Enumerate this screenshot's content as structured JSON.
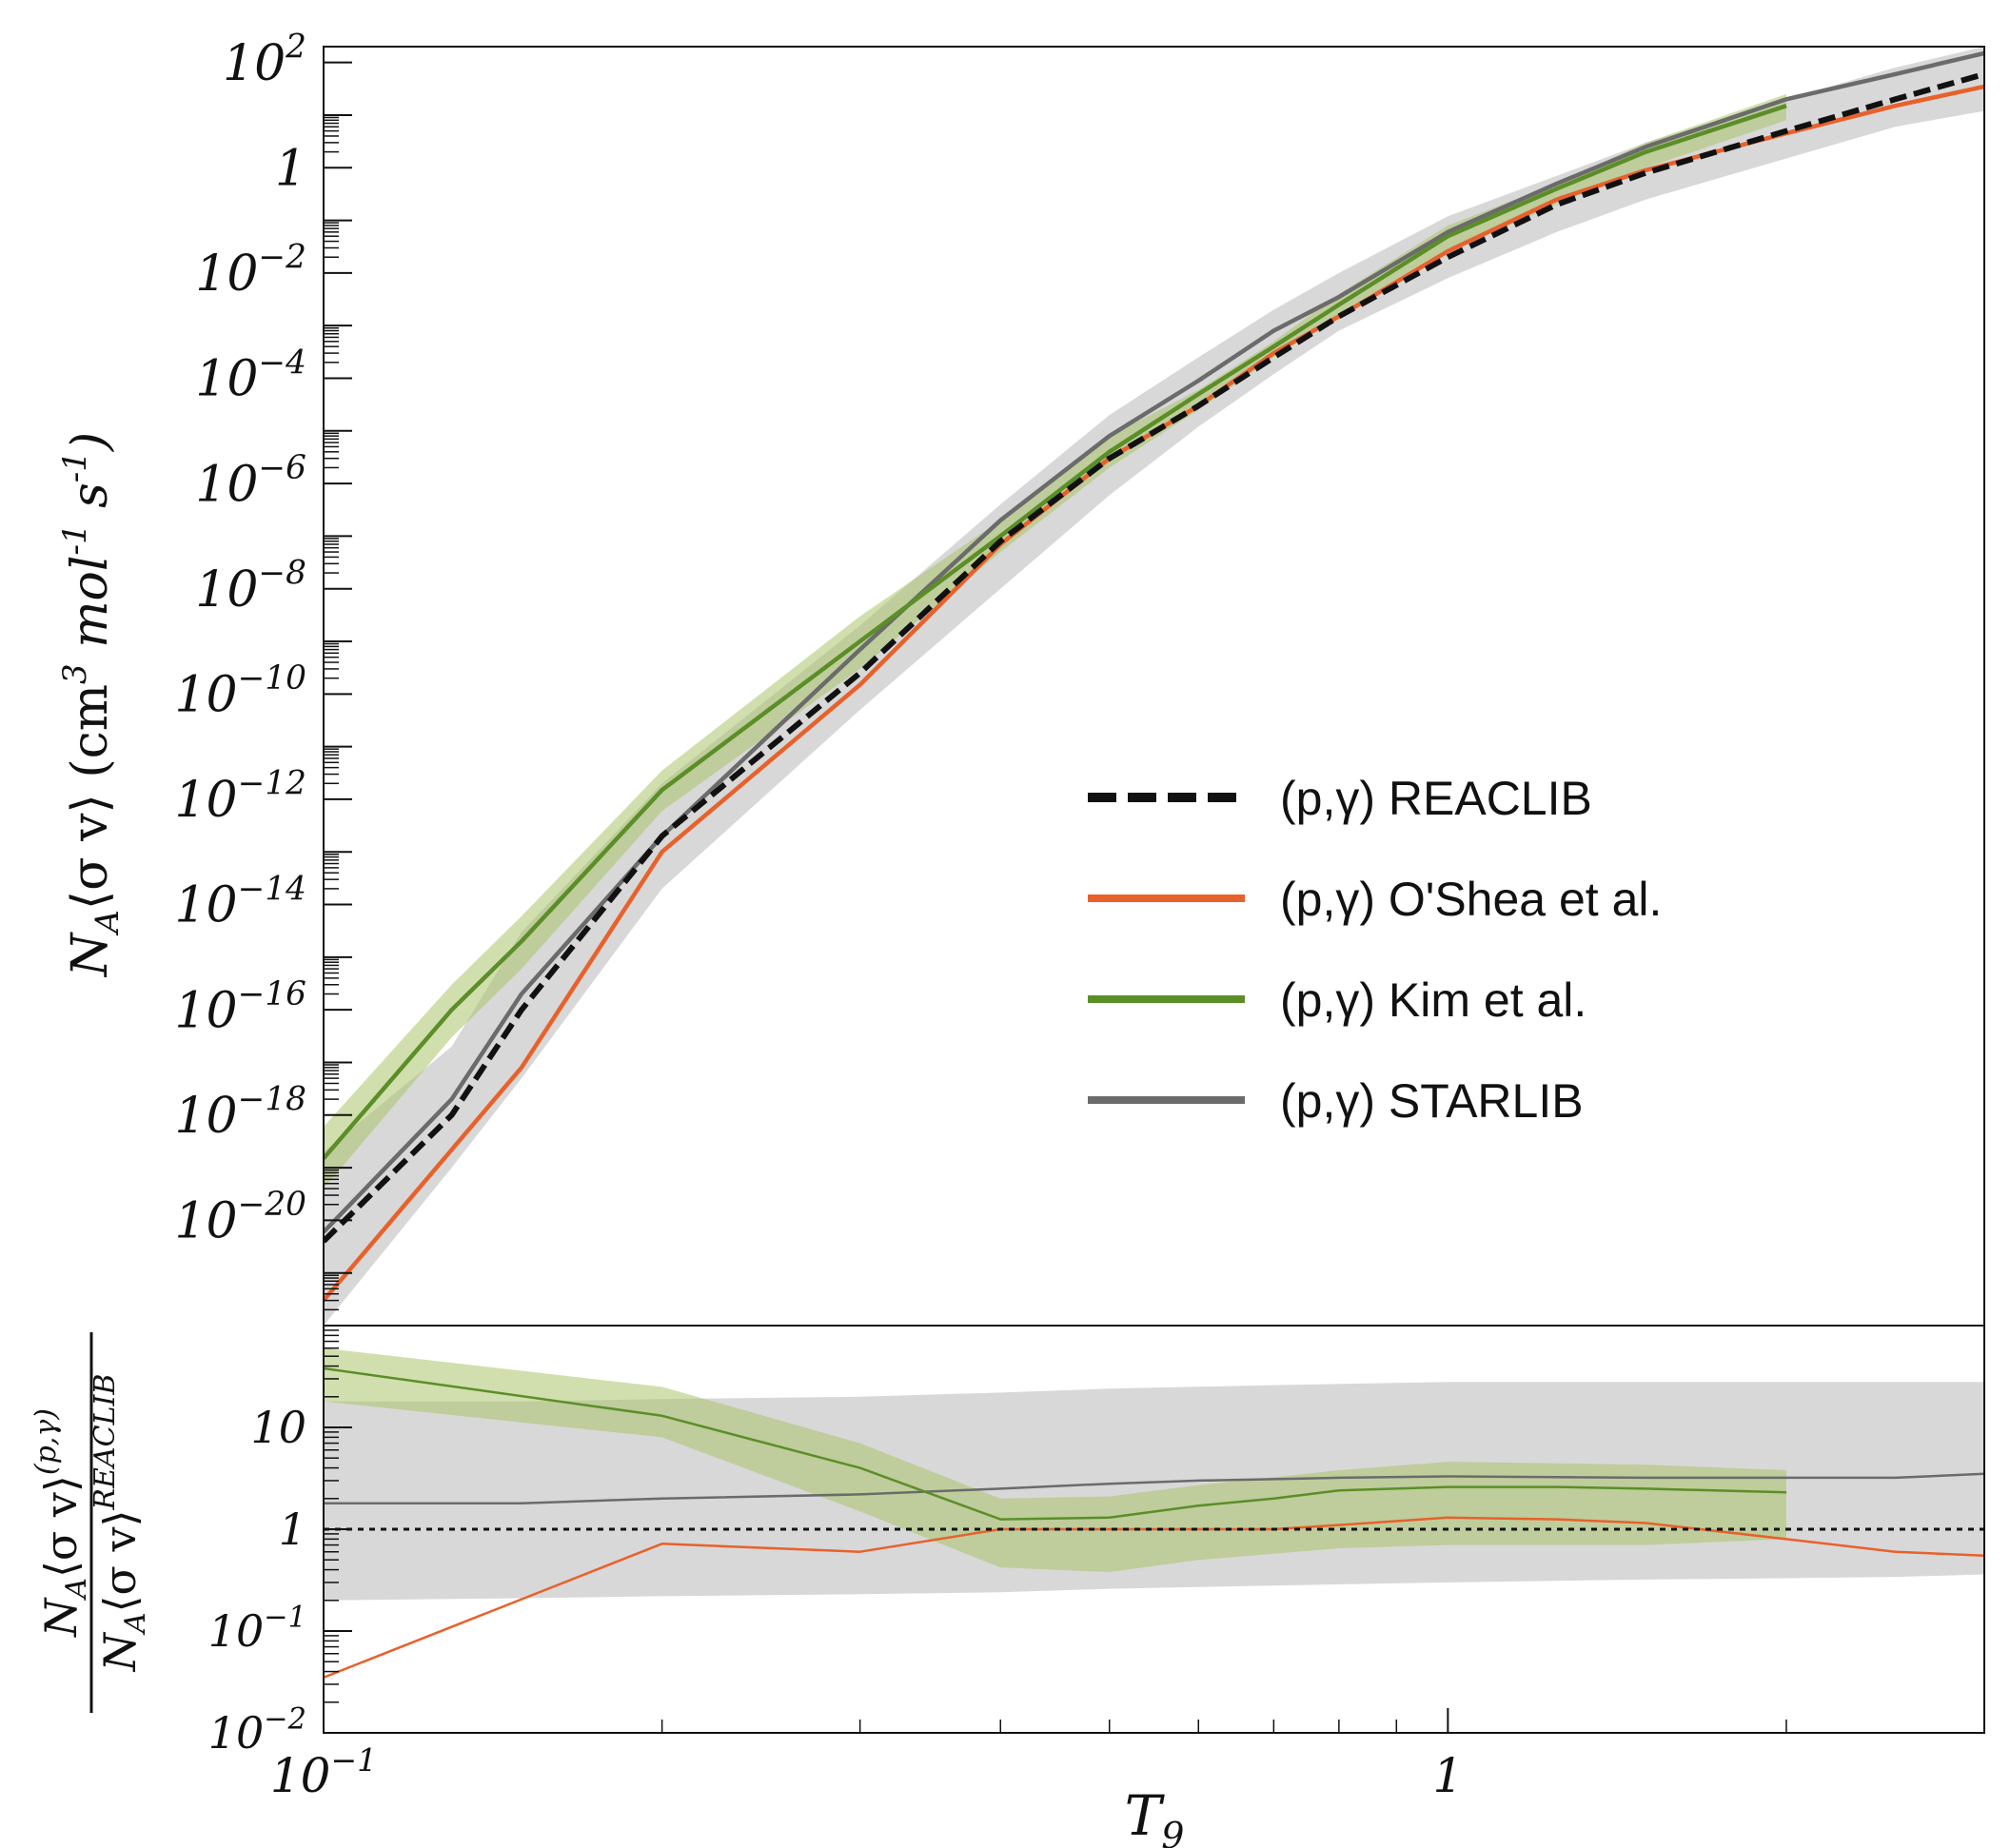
{
  "figure": {
    "xlabel": "T",
    "xlabel_sub": "9",
    "top_ylabel": {
      "pre": "N",
      "sub": "A",
      "mid": "⟨σ v⟩ (cm",
      "sup3": "3",
      "mid2": " mol",
      "supm1a": "-1",
      "mid3": " s",
      "supm1b": "-1",
      "end": ")"
    },
    "bottom_ylabel": {
      "num": "N",
      "num_sub": "A",
      "num_mid": "⟨σ v⟩",
      "num_sup": "(p,γ)",
      "den": "N",
      "den_sub": "A",
      "den_mid": "⟨σ v⟩",
      "den_sup": "REACLIB"
    }
  },
  "colors": {
    "reaclib": "#111111",
    "oshea": "#e8612b",
    "kim": "#5c8e28",
    "kim_band": "#a9c46a",
    "starlib": "#6b6b6b",
    "starlib_band": "#d4d4d4"
  },
  "chart_data": [
    {
      "type": "line",
      "panel": "top",
      "xscale": "log",
      "yscale": "log",
      "xlim": [
        0.1,
        3.0
      ],
      "ylim": [
        1e-22,
        200
      ],
      "ylabel": "N_A⟨σ v⟩ (cm^3 mol^-1 s^-1)",
      "yticks": [
        {
          "base": "10",
          "exp": "2",
          "v": 100
        },
        {
          "base": "1",
          "exp": "",
          "v": 1
        },
        {
          "base": "10",
          "exp": "−2",
          "v": 0.01
        },
        {
          "base": "10",
          "exp": "−4",
          "v": 0.0001
        },
        {
          "base": "10",
          "exp": "−6",
          "v": 1e-06
        },
        {
          "base": "10",
          "exp": "−8",
          "v": 1e-08
        },
        {
          "base": "10",
          "exp": "−10",
          "v": 1e-10
        },
        {
          "base": "10",
          "exp": "−12",
          "v": 1e-12
        },
        {
          "base": "10",
          "exp": "−14",
          "v": 1e-14
        },
        {
          "base": "10",
          "exp": "−16",
          "v": 1e-16
        },
        {
          "base": "10",
          "exp": "−18",
          "v": 1e-18
        },
        {
          "base": "10",
          "exp": "−20",
          "v": 1e-20
        }
      ],
      "legend_position": "center-right",
      "series": [
        {
          "key": "starlib_band",
          "type": "area",
          "name": "STARLIB uncertainty",
          "x": [
            0.1,
            0.13,
            0.15,
            0.2,
            0.3,
            0.4,
            0.5,
            0.6,
            0.7,
            0.8,
            1.0,
            1.25,
            1.5,
            2.0,
            2.5,
            3.0
          ],
          "lower": [
            1e-22,
            1e-19,
            5e-18,
            2e-14,
            5e-11,
            1e-08,
            6e-07,
            1.2e-05,
            0.00012,
            0.0008,
            0.008,
            0.06,
            0.25,
            1.5,
            6,
            12
          ],
          "upper": [
            2e-19,
            2e-17,
            3e-15,
            2e-12,
            2e-09,
            4e-07,
            2e-05,
            0.00025,
            0.002,
            0.01,
            0.12,
            0.7,
            3,
            20,
            80,
            200
          ]
        },
        {
          "key": "kim_band",
          "type": "area",
          "name": "Kim et al. uncertainty",
          "x": [
            0.1,
            0.13,
            0.15,
            0.2,
            0.3,
            0.4,
            0.5,
            0.6,
            0.7,
            0.8,
            1.0,
            1.25,
            1.5,
            2.0
          ],
          "lower": [
            4e-20,
            3e-17,
            6e-16,
            6e-13,
            3e-10,
            5e-08,
            2e-06,
            2.5e-05,
            0.00025,
            0.0015,
            0.025,
            0.2,
            1.0,
            8
          ],
          "upper": [
            6e-19,
            3e-16,
            6e-15,
            3.5e-12,
            3e-09,
            2e-07,
            8e-06,
            6e-05,
            0.0005,
            0.004,
            0.08,
            0.5,
            3,
            25
          ]
        },
        {
          "key": "reaclib",
          "type": "line",
          "name": "(p,γ) REACLIB",
          "dash": "dashed",
          "x": [
            0.1,
            0.13,
            0.15,
            0.2,
            0.3,
            0.4,
            0.5,
            0.6,
            0.7,
            0.8,
            1.0,
            1.25,
            1.5,
            2.0,
            2.5,
            3.0
          ],
          "y": [
            4e-21,
            1e-18,
            1e-16,
            2e-13,
            2.5e-10,
            8e-08,
            3e-06,
            3e-05,
            0.00025,
            0.0015,
            0.02,
            0.2,
            0.8,
            5,
            20,
            60
          ]
        },
        {
          "key": "oshea",
          "type": "line",
          "name": "(p,γ) O'Shea et al.",
          "x": [
            0.1,
            0.15,
            0.2,
            0.3,
            0.4,
            0.5,
            0.6,
            0.7,
            0.8,
            1.0,
            1.25,
            1.5,
            2.0,
            2.5,
            3.0
          ],
          "y": [
            3e-22,
            8e-18,
            1e-13,
            1.5e-10,
            7e-08,
            3e-06,
            3e-05,
            0.0003,
            0.0015,
            0.026,
            0.25,
            0.9,
            4.5,
            15,
            35
          ]
        },
        {
          "key": "kim",
          "type": "line",
          "name": "(p,γ) Kim et al.",
          "x": [
            0.1,
            0.13,
            0.15,
            0.2,
            0.3,
            0.4,
            0.5,
            0.6,
            0.7,
            0.8,
            1.0,
            1.25,
            1.5,
            2.0
          ],
          "y": [
            1.5e-19,
            1e-16,
            2e-15,
            1.5e-12,
            1e-09,
            1e-07,
            4e-06,
            5e-05,
            0.0004,
            0.0025,
            0.05,
            0.4,
            2,
            15
          ]
        },
        {
          "key": "starlib",
          "type": "line",
          "name": "(p,γ) STARLIB",
          "x": [
            0.1,
            0.13,
            0.15,
            0.2,
            0.3,
            0.4,
            0.5,
            0.6,
            0.7,
            0.8,
            1.0,
            1.25,
            1.5,
            2.0,
            2.5,
            3.0
          ],
          "y": [
            6e-21,
            2e-18,
            2e-16,
            2e-13,
            7e-10,
            2e-07,
            8e-06,
            9e-05,
            0.0008,
            0.0035,
            0.06,
            0.5,
            2.5,
            20,
            60,
            150
          ]
        }
      ]
    },
    {
      "type": "line",
      "panel": "bottom",
      "xscale": "log",
      "yscale": "log",
      "xlim": [
        0.1,
        3.0
      ],
      "ylim": [
        0.01,
        100
      ],
      "ylabel": "N_A⟨σ v⟩^(p,γ) / N_A⟨σ v⟩^REACLIB",
      "yticks": [
        {
          "base": "10",
          "exp": "",
          "v": 10
        },
        {
          "base": "1",
          "exp": "",
          "v": 1
        },
        {
          "base": "10",
          "exp": "−1",
          "v": 0.1
        },
        {
          "base": "10",
          "exp": "−2",
          "v": 0.01
        }
      ],
      "xticks": [
        {
          "base": "10",
          "exp": "−1",
          "v": 0.1
        },
        {
          "base": "1",
          "exp": "",
          "v": 1
        }
      ],
      "series": [
        {
          "key": "starlib_band",
          "type": "area",
          "name": "STARLIB ratio uncertainty",
          "x": [
            0.1,
            0.15,
            0.2,
            0.3,
            0.4,
            0.5,
            0.7,
            1.0,
            1.5,
            2.0,
            2.5,
            3.0
          ],
          "lower": [
            0.2,
            0.21,
            0.22,
            0.23,
            0.24,
            0.26,
            0.28,
            0.3,
            0.32,
            0.33,
            0.34,
            0.36
          ],
          "upper": [
            18,
            18,
            19,
            20,
            22,
            24,
            26,
            28,
            28,
            28,
            28,
            28
          ]
        },
        {
          "key": "kim_band",
          "type": "area",
          "name": "Kim et al. ratio uncertainty",
          "x": [
            0.1,
            0.2,
            0.3,
            0.4,
            0.5,
            0.6,
            0.8,
            1.0,
            1.5,
            2.0
          ],
          "lower": [
            18,
            8,
            1.5,
            0.42,
            0.38,
            0.5,
            0.65,
            0.7,
            0.7,
            0.8
          ],
          "upper": [
            60,
            25,
            7,
            2.0,
            2.1,
            2.7,
            3.8,
            4.6,
            4.3,
            3.8
          ]
        },
        {
          "key": "reaclib",
          "type": "line",
          "name": "REACLIB ratio",
          "dash": "dotted",
          "x": [
            0.1,
            3.0
          ],
          "y": [
            1,
            1
          ]
        },
        {
          "key": "oshea",
          "type": "line",
          "name": "O'Shea ratio",
          "x": [
            0.1,
            0.2,
            0.3,
            0.4,
            0.5,
            0.6,
            0.7,
            0.8,
            1.0,
            1.25,
            1.5,
            2.0,
            2.5,
            3.0
          ],
          "y": [
            0.035,
            0.72,
            0.6,
            1.0,
            1.0,
            1.0,
            1.0,
            1.1,
            1.3,
            1.25,
            1.15,
            0.8,
            0.6,
            0.55
          ]
        },
        {
          "key": "kim",
          "type": "line",
          "name": "Kim ratio",
          "x": [
            0.1,
            0.2,
            0.3,
            0.4,
            0.5,
            0.6,
            0.7,
            0.8,
            1.0,
            1.25,
            1.5,
            2.0
          ],
          "y": [
            38,
            13,
            4,
            1.25,
            1.3,
            1.7,
            2.0,
            2.4,
            2.6,
            2.6,
            2.5,
            2.3
          ]
        },
        {
          "key": "starlib",
          "type": "line",
          "name": "STARLIB ratio",
          "x": [
            0.1,
            0.15,
            0.2,
            0.3,
            0.4,
            0.5,
            0.6,
            0.7,
            0.8,
            1.0,
            1.5,
            2.0,
            2.5,
            3.0
          ],
          "y": [
            1.8,
            1.8,
            2.0,
            2.2,
            2.5,
            2.8,
            3.0,
            3.1,
            3.2,
            3.3,
            3.2,
            3.2,
            3.2,
            3.5
          ]
        }
      ]
    }
  ],
  "legend": [
    {
      "key": "reaclib",
      "label": "(p,γ) REACLIB",
      "dash": "dashed"
    },
    {
      "key": "oshea",
      "label": "(p,γ) O'Shea et al.",
      "dash": "solid"
    },
    {
      "key": "kim",
      "label": "(p,γ) Kim et al.",
      "dash": "solid"
    },
    {
      "key": "starlib",
      "label": "(p,γ) STARLIB",
      "dash": "solid"
    }
  ]
}
